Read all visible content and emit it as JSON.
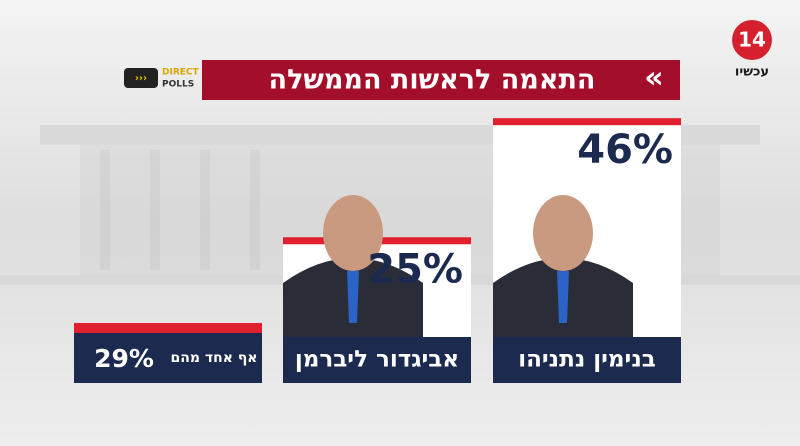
{
  "chart_data": {
    "type": "bar",
    "title": "התאמה לראשות הממשלה",
    "categories": [
      "בנימין נתניהו",
      "אביגדור ליברמן",
      "אף אחד מהם"
    ],
    "values": [
      46,
      25,
      29
    ],
    "value_labels": [
      "46%",
      "25%",
      "29%"
    ],
    "color": "#ffffff"
  },
  "logos": {
    "channel_number": "14",
    "channel_name": "עכשיו",
    "poll_brand_top": "DIRECT",
    "poll_brand_bottom": "POLLS"
  }
}
